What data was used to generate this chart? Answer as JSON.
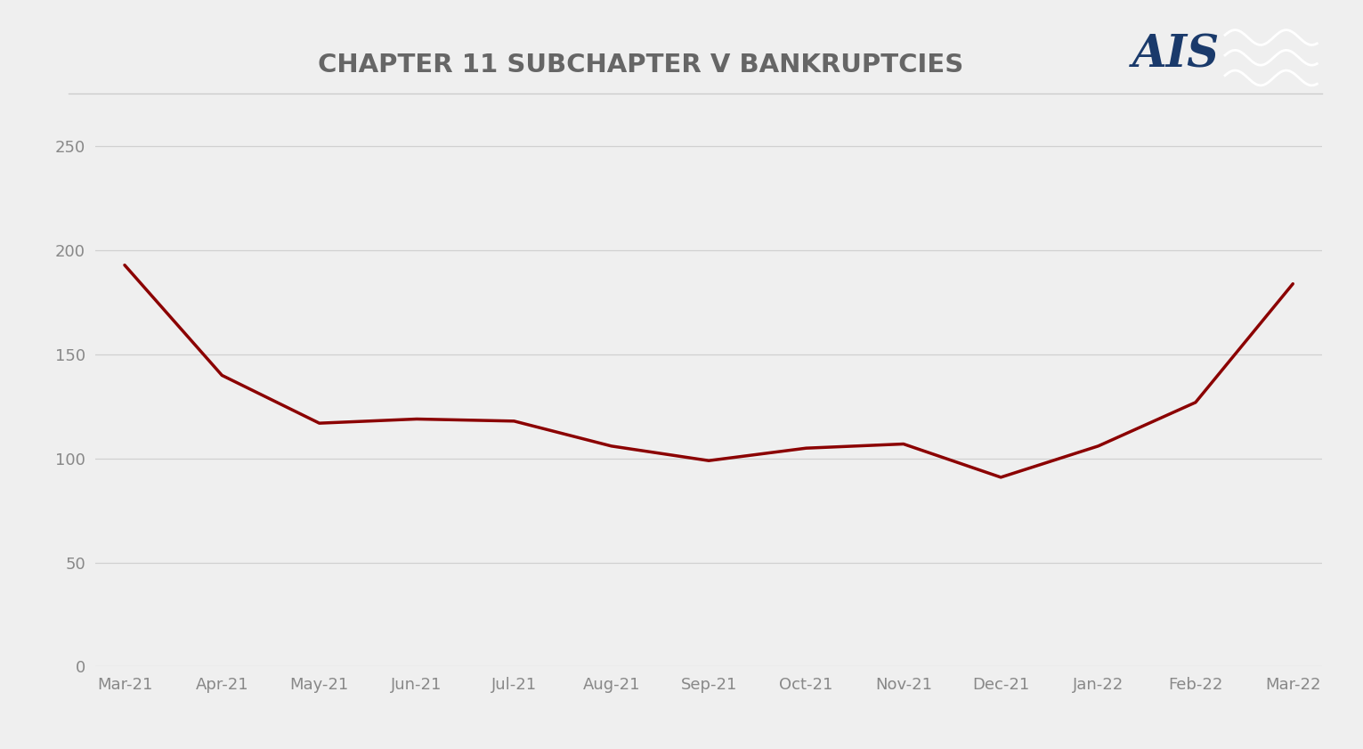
{
  "title": "CHAPTER 11 SUBCHAPTER V BANKRUPTCIES",
  "title_fontsize": 21,
  "title_fontweight": "bold",
  "title_color": "#666666",
  "background_color": "#efefef",
  "plot_bg_color": "#efefef",
  "line_color": "#8B0000",
  "line_width": 2.5,
  "x_labels": [
    "Mar-21",
    "Apr-21",
    "May-21",
    "Jun-21",
    "Jul-21",
    "Aug-21",
    "Sep-21",
    "Oct-21",
    "Nov-21",
    "Dec-21",
    "Jan-22",
    "Feb-22",
    "Mar-22"
  ],
  "y_values": [
    193,
    140,
    117,
    119,
    118,
    106,
    99,
    105,
    107,
    91,
    106,
    127,
    184
  ],
  "ylim": [
    0,
    270
  ],
  "yticks": [
    0,
    50,
    100,
    150,
    200,
    250
  ],
  "grid_color": "#d0d0d0",
  "grid_linewidth": 0.9,
  "tick_color": "#888888",
  "tick_fontsize": 13,
  "ais_text_color": "#1a3a6b",
  "ais_box_color": "#cc1111",
  "logo_text": "AIS",
  "logo_fontsize": 36
}
